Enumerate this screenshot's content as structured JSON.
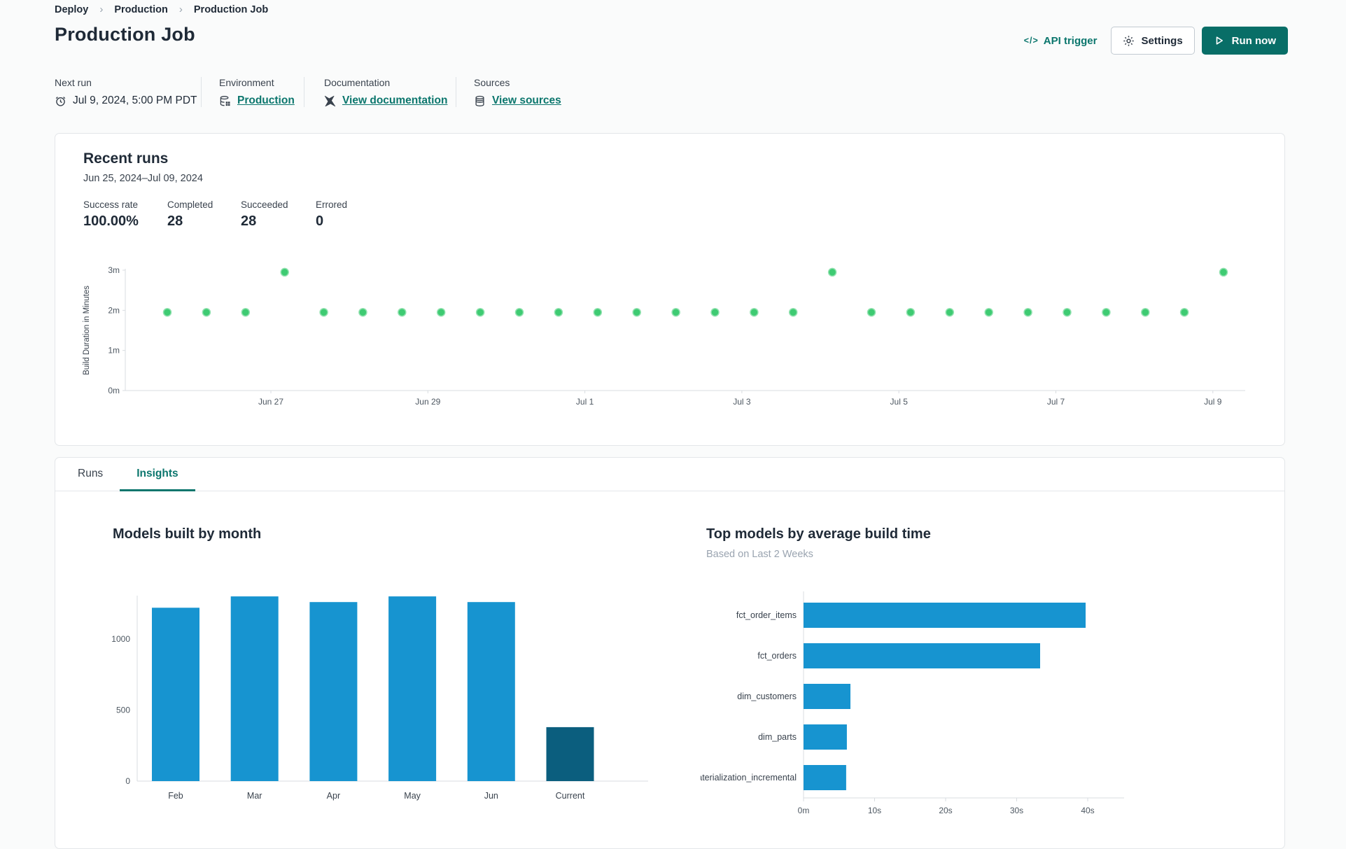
{
  "breadcrumb": {
    "separator": "›",
    "items": [
      "Deploy",
      "Production",
      "Production Job"
    ]
  },
  "header": {
    "title": "Production Job",
    "api_trigger_label": "API trigger",
    "api_trigger_glyph": "</>",
    "settings_label": "Settings",
    "run_now_label": "Run now"
  },
  "meta": {
    "next_run": {
      "label": "Next run",
      "value": "Jul 9, 2024, 5:00 PM PDT",
      "icon": "alarm-clock-icon"
    },
    "environment": {
      "label": "Environment",
      "link": "Production",
      "icon": "environment-database-icon"
    },
    "documentation": {
      "label": "Documentation",
      "link": "View documentation",
      "icon": "dbt-logo-icon"
    },
    "sources": {
      "label": "Sources",
      "link": "View sources",
      "icon": "database-icon"
    }
  },
  "recent_runs": {
    "title": "Recent runs",
    "date_range": "Jun 25, 2024–Jul 09, 2024",
    "stats": [
      {
        "label": "Success rate",
        "value": "100.00%"
      },
      {
        "label": "Completed",
        "value": "28"
      },
      {
        "label": "Succeeded",
        "value": "28"
      },
      {
        "label": "Errored",
        "value": "0"
      }
    ]
  },
  "tabs": [
    {
      "label": "Runs",
      "active": false
    },
    {
      "label": "Insights",
      "active": true
    }
  ],
  "colors": {
    "accent_teal": "#0b766d",
    "button_teal": "#086e67",
    "bar_blue": "#1794d0",
    "bar_dark": "#0b5e7e",
    "dot_green": "#3ecb72"
  },
  "chart_data": [
    {
      "type": "scatter",
      "title": "Recent runs build duration",
      "ylabel": "Build Duration in Minutes",
      "y_ticks": [
        "0m",
        "1m",
        "2m",
        "3m"
      ],
      "ylim": [
        0,
        3.2
      ],
      "x_ticks": [
        "Jun 27",
        "Jun 29",
        "Jul 1",
        "Jul 3",
        "Jul 5",
        "Jul 7",
        "Jul 9"
      ],
      "x_range": [
        "Jun 25, 2024",
        "Jul 09, 2024"
      ],
      "point_color": "#3ecb72",
      "point_halo": "#93e2b1",
      "points": [
        1.95,
        1.95,
        1.95,
        2.95,
        1.95,
        1.95,
        1.95,
        1.95,
        1.95,
        1.95,
        1.95,
        1.95,
        1.95,
        1.95,
        1.95,
        1.95,
        1.95,
        2.95,
        1.95,
        1.95,
        1.95,
        1.95,
        1.95,
        1.95,
        1.95,
        1.95,
        1.95,
        2.95
      ]
    },
    {
      "type": "bar",
      "title": "Models built by month",
      "categories": [
        "Feb",
        "Mar",
        "Apr",
        "May",
        "Jun",
        "Current"
      ],
      "values": [
        1220,
        1300,
        1260,
        1300,
        1260,
        380
      ],
      "y_ticks": [
        0,
        500,
        1000
      ],
      "ylim": [
        0,
        1400
      ],
      "grid": false,
      "bar_color": "#1794d0",
      "highlight_index": 5,
      "highlight_color": "#0b5e7e"
    },
    {
      "type": "horizontal_bar",
      "title": "Top models by average build time",
      "subtitle": "Based on Last 2 Weeks",
      "categories": [
        "fct_order_items",
        "fct_orders",
        "dim_customers",
        "dim_parts",
        "materialization_incremental"
      ],
      "values_seconds": [
        39.7,
        33.3,
        6.6,
        6.1,
        6.0
      ],
      "x_ticks": [
        "0m",
        "10s",
        "20s",
        "30s",
        "40s"
      ],
      "xlim": [
        0,
        44
      ],
      "grid": false,
      "bar_color": "#1794d0"
    }
  ]
}
